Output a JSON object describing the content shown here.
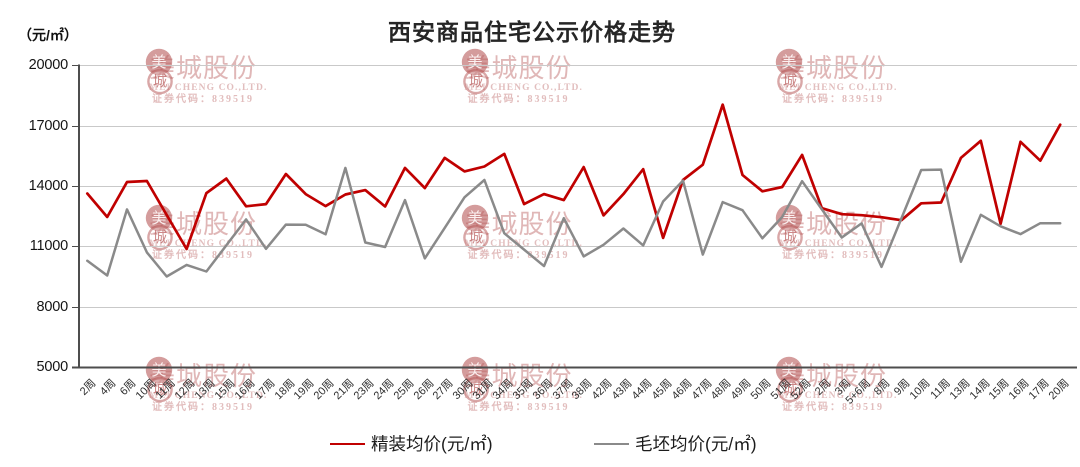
{
  "title": "西安商品住宅公示价格走势",
  "y_axis": {
    "unit_label": "（元/㎡）",
    "tick_labels": [
      "20000",
      "17000",
      "14000",
      "11000",
      "8000",
      "5000"
    ]
  },
  "legend": [
    {
      "label": "精装均价(元/㎡)",
      "color": "#c00000"
    },
    {
      "label": "毛坯均价(元/㎡)",
      "color": "#8a8a8a"
    }
  ],
  "watermark": {
    "seal_top": "美",
    "seal_bottom": "城",
    "company_cn": "美城股份",
    "company_en": "MEI CHENG CO.,LTD.",
    "stock_code": "证券代码：839519"
  },
  "chart_data": {
    "type": "line",
    "title": "西安商品住宅公示价格走势",
    "xlabel": "",
    "ylabel": "（元/㎡）",
    "ylim": [
      5000,
      20000
    ],
    "yticks": [
      5000,
      8000,
      11000,
      14000,
      17000,
      20000
    ],
    "grid": true,
    "legend_position": "bottom",
    "categories": [
      "2周",
      "4周",
      "6周",
      "10周",
      "11周",
      "12周",
      "13周",
      "15周",
      "16周",
      "17周",
      "18周",
      "19周",
      "20周",
      "21周",
      "23周",
      "24周",
      "25周",
      "26周",
      "27周",
      "30周",
      "31周",
      "34周",
      "35周",
      "36周",
      "37周",
      "38周",
      "42周",
      "43周",
      "44周",
      "45周",
      "46周",
      "47周",
      "48周",
      "49周",
      "50周",
      "51周",
      "52周",
      "2周",
      "3周",
      "5+6周",
      "8周",
      "9周",
      "10周",
      "11周",
      "13周",
      "14周",
      "15周",
      "16周",
      "17周",
      "20周"
    ],
    "series": [
      {
        "name": "精装均价(元/㎡)",
        "color": "#c00000",
        "values": [
          13630,
          12460,
          14200,
          14250,
          12560,
          10870,
          13650,
          14370,
          12990,
          13100,
          14600,
          13600,
          13000,
          13580,
          13800,
          12980,
          14900,
          13900,
          15400,
          14730,
          14970,
          15600,
          13100,
          13600,
          13300,
          14940,
          12540,
          13600,
          14840,
          11420,
          14300,
          15060,
          18050,
          14550,
          13740,
          13950,
          15550,
          12900,
          12600,
          12550,
          12450,
          12300,
          13140,
          13180,
          15400,
          16250,
          12120,
          16200,
          15260,
          17050
        ]
      },
      {
        "name": "毛坯均价(元/㎡)",
        "color": "#8a8a8a",
        "values": [
          10280,
          9550,
          12840,
          10700,
          9500,
          10080,
          9750,
          11050,
          12340,
          10880,
          12080,
          12070,
          11600,
          14900,
          11190,
          10970,
          13300,
          10400,
          11920,
          13440,
          14300,
          11650,
          10840,
          10020,
          12400,
          10500,
          11080,
          11890,
          11050,
          13230,
          14270,
          10590,
          13200,
          12800,
          11400,
          12460,
          14240,
          12840,
          11440,
          12140,
          9980,
          12390,
          14800,
          14820,
          10230,
          12570,
          12000,
          11610,
          12150,
          12150
        ]
      }
    ]
  }
}
